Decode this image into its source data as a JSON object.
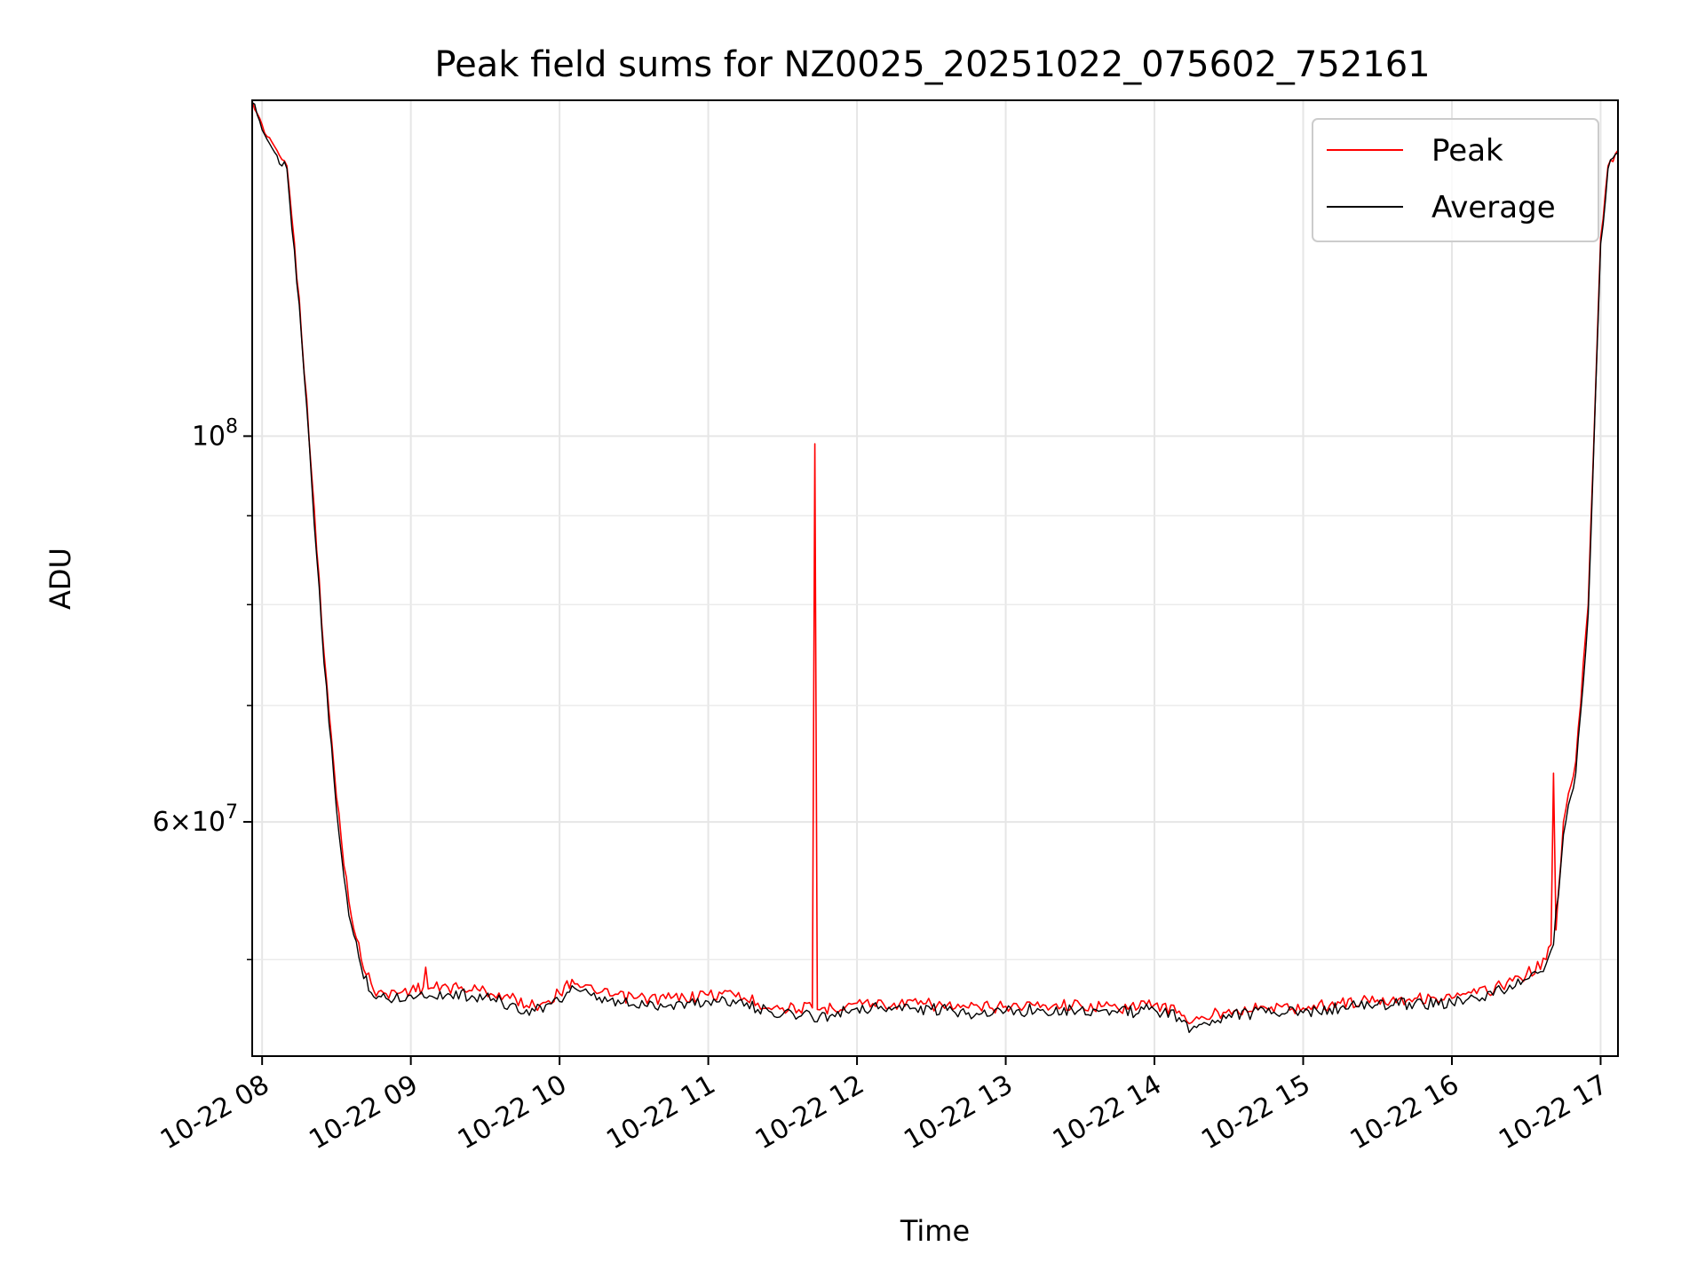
{
  "chart_data": {
    "type": "line",
    "title": "Peak field sums for NZ0025_20251022_075602_752161",
    "xlabel": "Time",
    "ylabel": "ADU",
    "x_scale": "time",
    "y_scale": "log",
    "xlim": [
      "10-22 07:56",
      "10-22 17:07"
    ],
    "ylim": [
      44000000,
      156000000
    ],
    "x_ticks": [
      "10-22 08",
      "10-22 09",
      "10-22 10",
      "10-22 11",
      "10-22 12",
      "10-22 13",
      "10-22 14",
      "10-22 15",
      "10-22 16",
      "10-22 17"
    ],
    "y_major_ticks": [
      {
        "value": 100000000,
        "base": "10",
        "exp": "8",
        "coef": ""
      },
      {
        "value": 60000000,
        "base": "10",
        "exp": "7",
        "coef": "6"
      }
    ],
    "y_minor_ticks": [
      50000000,
      70000000,
      80000000,
      90000000
    ],
    "grid": true,
    "legend": {
      "placement": "top-right",
      "entries": [
        "Peak",
        "Average"
      ]
    },
    "series": [
      {
        "name": "Peak",
        "color": "#ff0000",
        "points": [
          [
            "07:56",
            156000000
          ],
          [
            "08:00",
            151000000
          ],
          [
            "08:06",
            146000000
          ],
          [
            "08:10",
            143000000
          ],
          [
            "08:15",
            120000000
          ],
          [
            "08:20",
            95000000
          ],
          [
            "08:25",
            75000000
          ],
          [
            "08:30",
            62000000
          ],
          [
            "08:35",
            54000000
          ],
          [
            "08:40",
            50000000
          ],
          [
            "08:45",
            48000000
          ],
          [
            "08:50",
            47800000
          ],
          [
            "09:00",
            48000000
          ],
          [
            "09:05",
            48200000
          ],
          [
            "09:06",
            49500000
          ],
          [
            "09:07",
            48100000
          ],
          [
            "09:15",
            48200000
          ],
          [
            "09:30",
            48000000
          ],
          [
            "09:40",
            47500000
          ],
          [
            "09:50",
            47000000
          ],
          [
            "10:00",
            47800000
          ],
          [
            "10:05",
            48700000
          ],
          [
            "10:15",
            47800000
          ],
          [
            "10:30",
            47500000
          ],
          [
            "10:45",
            47500000
          ],
          [
            "11:00",
            47700000
          ],
          [
            "11:10",
            47800000
          ],
          [
            "11:20",
            47200000
          ],
          [
            "11:30",
            46900000
          ],
          [
            "11:42",
            46900000
          ],
          [
            "11:43",
            99000000
          ],
          [
            "11:44",
            46800000
          ],
          [
            "11:50",
            46900000
          ],
          [
            "12:00",
            47200000
          ],
          [
            "12:15",
            47200000
          ],
          [
            "12:30",
            47100000
          ],
          [
            "12:45",
            46900000
          ],
          [
            "13:00",
            47000000
          ],
          [
            "13:15",
            47100000
          ],
          [
            "13:30",
            47100000
          ],
          [
            "13:45",
            46900000
          ],
          [
            "14:00",
            47100000
          ],
          [
            "14:10",
            46700000
          ],
          [
            "14:15",
            46000000
          ],
          [
            "14:20",
            46300000
          ],
          [
            "14:30",
            46800000
          ],
          [
            "14:45",
            46900000
          ],
          [
            "15:00",
            46900000
          ],
          [
            "15:15",
            47200000
          ],
          [
            "15:30",
            47400000
          ],
          [
            "15:45",
            47500000
          ],
          [
            "16:00",
            47500000
          ],
          [
            "16:10",
            47800000
          ],
          [
            "16:20",
            48300000
          ],
          [
            "16:30",
            49000000
          ],
          [
            "16:38",
            50000000
          ],
          [
            "16:40",
            51000000
          ],
          [
            "16:41",
            64000000
          ],
          [
            "16:42",
            52000000
          ],
          [
            "16:45",
            60000000
          ],
          [
            "16:50",
            65000000
          ],
          [
            "16:55",
            80000000
          ],
          [
            "17:00",
            130000000
          ],
          [
            "17:03",
            143000000
          ],
          [
            "17:07",
            146000000
          ]
        ]
      },
      {
        "name": "Average",
        "color": "#000000",
        "points": [
          [
            "07:56",
            155500000
          ],
          [
            "08:00",
            150000000
          ],
          [
            "08:06",
            145000000
          ],
          [
            "08:10",
            142500000
          ],
          [
            "08:15",
            119000000
          ],
          [
            "08:20",
            94000000
          ],
          [
            "08:25",
            74000000
          ],
          [
            "08:30",
            61000000
          ],
          [
            "08:35",
            53000000
          ],
          [
            "08:40",
            49500000
          ],
          [
            "08:45",
            47600000
          ],
          [
            "08:50",
            47500000
          ],
          [
            "09:00",
            47700000
          ],
          [
            "09:15",
            47800000
          ],
          [
            "09:30",
            47600000
          ],
          [
            "09:40",
            47100000
          ],
          [
            "09:50",
            46700000
          ],
          [
            "10:00",
            47300000
          ],
          [
            "10:05",
            48300000
          ],
          [
            "10:15",
            47400000
          ],
          [
            "10:30",
            47100000
          ],
          [
            "10:45",
            47100000
          ],
          [
            "11:00",
            47300000
          ],
          [
            "11:10",
            47400000
          ],
          [
            "11:20",
            46800000
          ],
          [
            "11:30",
            46500000
          ],
          [
            "11:45",
            46400000
          ],
          [
            "11:50",
            46500000
          ],
          [
            "12:00",
            46900000
          ],
          [
            "12:15",
            46900000
          ],
          [
            "12:30",
            46800000
          ],
          [
            "12:45",
            46600000
          ],
          [
            "13:00",
            46700000
          ],
          [
            "13:15",
            46800000
          ],
          [
            "13:30",
            46800000
          ],
          [
            "13:45",
            46600000
          ],
          [
            "14:00",
            46800000
          ],
          [
            "14:10",
            46300000
          ],
          [
            "14:15",
            45600000
          ],
          [
            "14:20",
            46000000
          ],
          [
            "14:30",
            46500000
          ],
          [
            "14:45",
            46600000
          ],
          [
            "15:00",
            46600000
          ],
          [
            "15:15",
            46900000
          ],
          [
            "15:30",
            47100000
          ],
          [
            "15:45",
            47200000
          ],
          [
            "16:00",
            47200000
          ],
          [
            "16:10",
            47500000
          ],
          [
            "16:20",
            48000000
          ],
          [
            "16:30",
            48700000
          ],
          [
            "16:38",
            49700000
          ],
          [
            "16:41",
            51000000
          ],
          [
            "16:45",
            59000000
          ],
          [
            "16:50",
            64000000
          ],
          [
            "16:55",
            79000000
          ],
          [
            "17:00",
            129000000
          ],
          [
            "17:03",
            142500000
          ],
          [
            "17:07",
            145500000
          ]
        ]
      }
    ]
  }
}
